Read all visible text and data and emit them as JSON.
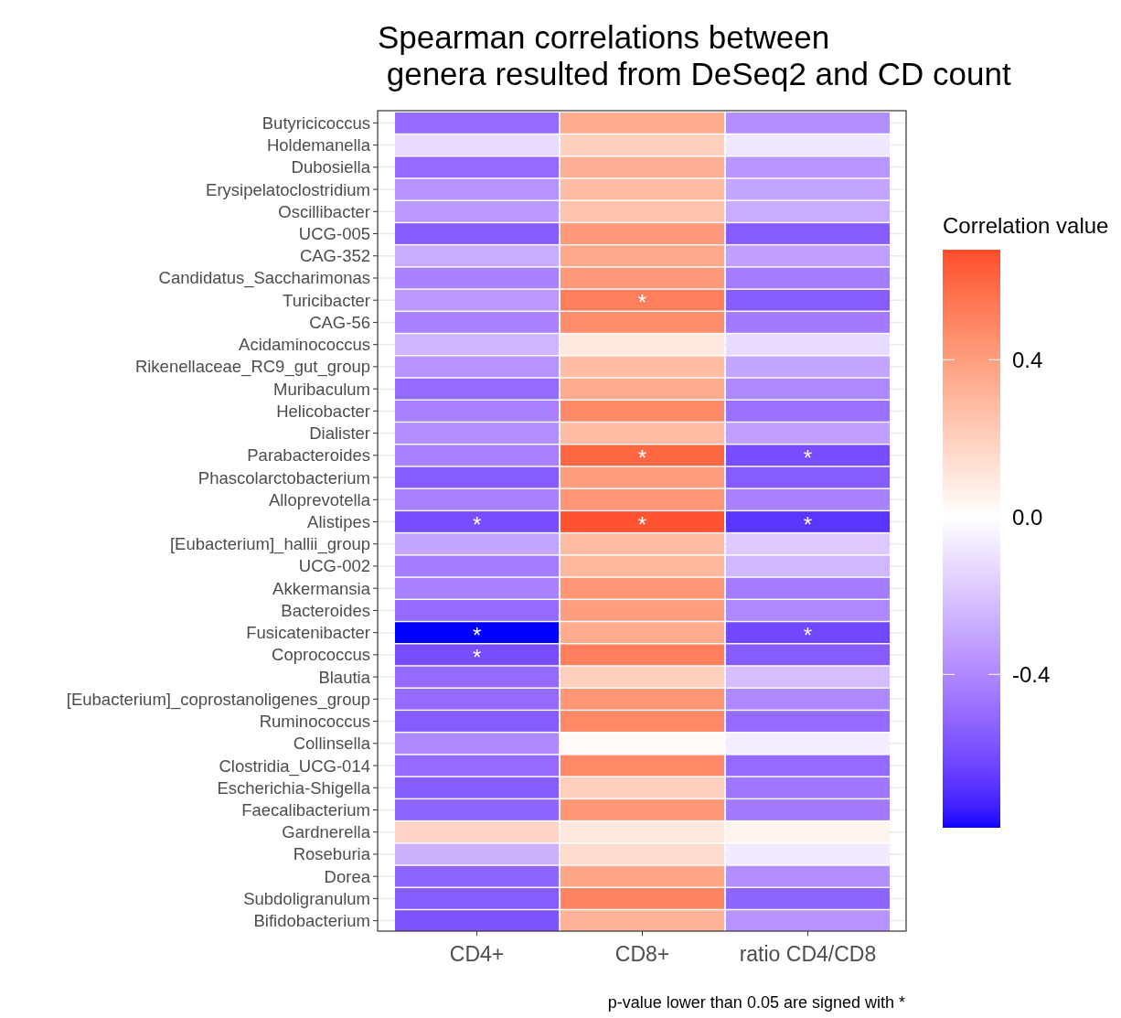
{
  "chart_data": {
    "type": "heatmap",
    "title": "Spearman correlations between\n genera resulted from DeSeq2 and CD count",
    "clabel": "Correlation value",
    "annotations": [
      "p-value lower than 0.05 are signed with *"
    ],
    "categories": [
      "CD4+",
      "CD8+",
      "ratio CD4/CD8"
    ],
    "y_categories": [
      "Butyricicoccus",
      "Holdemanella",
      "Dubosiella",
      "Erysipelatoclostridium",
      "Oscillibacter",
      "UCG-005",
      "CAG-352",
      "Candidatus_Saccharimonas",
      "Turicibacter",
      "CAG-56",
      "Acidaminococcus",
      "Rikenellaceae_RC9_gut_group",
      "Muribaculum",
      "Helicobacter",
      "Dialister",
      "Parabacteroides",
      "Phascolarctobacterium",
      "Alloprevotella",
      "Alistipes",
      "[Eubacterium]_hallii_group",
      "UCG-002",
      "Akkermansia",
      "Bacteroides",
      "Fusicatenibacter",
      "Coprococcus",
      "Blautia",
      "[Eubacterium]_coprostanoligenes_group",
      "Ruminococcus",
      "Collinsella",
      "Clostridia_UCG-014",
      "Escherichia-Shigella",
      "Faecalibacterium",
      "Gardnerella",
      "Roseburia",
      "Dorea",
      "Subdoligranulum",
      "Bifidobacterium"
    ],
    "cells": [
      [
        -0.5,
        0.35,
        -0.38
      ],
      [
        -0.12,
        0.2,
        -0.08
      ],
      [
        -0.5,
        0.33,
        -0.35
      ],
      [
        -0.36,
        0.28,
        -0.3
      ],
      [
        -0.34,
        0.25,
        -0.28
      ],
      [
        -0.55,
        0.42,
        -0.55
      ],
      [
        -0.28,
        0.36,
        -0.32
      ],
      [
        -0.42,
        0.42,
        -0.44
      ],
      [
        -0.34,
        0.52,
        -0.55
      ],
      [
        -0.42,
        0.47,
        -0.45
      ],
      [
        -0.25,
        0.1,
        -0.12
      ],
      [
        -0.36,
        0.28,
        -0.3
      ],
      [
        -0.5,
        0.35,
        -0.4
      ],
      [
        -0.42,
        0.48,
        -0.48
      ],
      [
        -0.38,
        0.28,
        -0.32
      ],
      [
        -0.42,
        0.6,
        -0.6
      ],
      [
        -0.55,
        0.4,
        -0.55
      ],
      [
        -0.42,
        0.43,
        -0.42
      ],
      [
        -0.6,
        0.66,
        -0.68
      ],
      [
        -0.3,
        0.28,
        -0.18
      ],
      [
        -0.44,
        0.3,
        -0.24
      ],
      [
        -0.42,
        0.43,
        -0.44
      ],
      [
        -0.5,
        0.4,
        -0.4
      ],
      [
        -0.79,
        0.35,
        -0.62
      ],
      [
        -0.6,
        0.52,
        -0.55
      ],
      [
        -0.5,
        0.2,
        -0.22
      ],
      [
        -0.5,
        0.43,
        -0.4
      ],
      [
        -0.55,
        0.48,
        -0.5
      ],
      [
        -0.4,
        0.02,
        -0.06
      ],
      [
        -0.5,
        0.48,
        -0.5
      ],
      [
        -0.55,
        0.2,
        -0.46
      ],
      [
        -0.52,
        0.43,
        -0.45
      ],
      [
        0.18,
        0.1,
        0.05
      ],
      [
        -0.26,
        0.15,
        -0.07
      ],
      [
        -0.52,
        0.37,
        -0.38
      ],
      [
        -0.55,
        0.5,
        -0.52
      ],
      [
        -0.58,
        0.32,
        -0.36
      ]
    ],
    "cell_labels": [
      [
        null,
        null,
        null
      ],
      [
        null,
        null,
        null
      ],
      [
        null,
        null,
        null
      ],
      [
        null,
        null,
        null
      ],
      [
        null,
        null,
        null
      ],
      [
        null,
        null,
        null
      ],
      [
        null,
        null,
        null
      ],
      [
        null,
        null,
        null
      ],
      [
        null,
        "*",
        null
      ],
      [
        null,
        null,
        null
      ],
      [
        null,
        null,
        null
      ],
      [
        null,
        null,
        null
      ],
      [
        null,
        null,
        null
      ],
      [
        null,
        null,
        null
      ],
      [
        null,
        null,
        null
      ],
      [
        null,
        "*",
        "*"
      ],
      [
        null,
        null,
        null
      ],
      [
        null,
        null,
        null
      ],
      [
        "*",
        "*",
        "*"
      ],
      [
        null,
        null,
        null
      ],
      [
        null,
        null,
        null
      ],
      [
        null,
        null,
        null
      ],
      [
        null,
        null,
        null
      ],
      [
        "*",
        null,
        "*"
      ],
      [
        "*",
        null,
        null
      ],
      [
        null,
        null,
        null
      ],
      [
        null,
        null,
        null
      ],
      [
        null,
        null,
        null
      ],
      [
        null,
        null,
        null
      ],
      [
        null,
        null,
        null
      ],
      [
        null,
        null,
        null
      ],
      [
        null,
        null,
        null
      ],
      [
        null,
        null,
        null
      ],
      [
        null,
        null,
        null
      ],
      [
        null,
        null,
        null
      ],
      [
        null,
        null,
        null
      ],
      [
        null,
        null,
        null
      ]
    ],
    "clim": [
      -0.79,
      0.68
    ],
    "cticks": [
      -0.4,
      {
        "value": 0,
        "label": "0.0"
      },
      0.4
    ],
    "grid": "y"
  }
}
